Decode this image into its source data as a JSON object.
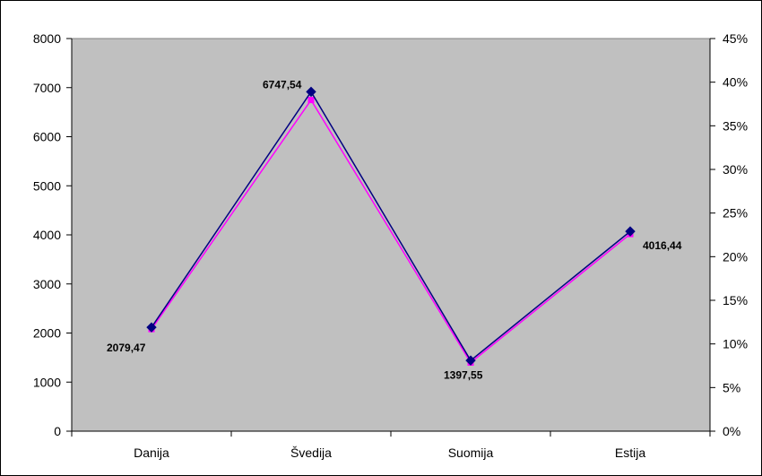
{
  "chart_data": {
    "type": "line",
    "categories": [
      "Danija",
      "Švedija",
      "Suomija",
      "Estija"
    ],
    "series": [
      {
        "values": [
          2079.47,
          6747.54,
          1397.55,
          4016.44
        ],
        "axis": "left",
        "color": "#ff00ff",
        "marker": "square"
      },
      {
        "values": [
          0.119,
          0.389,
          0.081,
          0.229
        ],
        "axis": "right",
        "color": "#000080",
        "marker": "diamond"
      }
    ],
    "data_labels": [
      "2079,47",
      "6747,54",
      "1397,55",
      "4016,44"
    ],
    "y_left": {
      "min": 0,
      "max": 8000,
      "ticks": [
        0,
        1000,
        2000,
        3000,
        4000,
        5000,
        6000,
        7000,
        8000
      ]
    },
    "y_right": {
      "min": 0,
      "max": 0.45,
      "ticks": [
        0,
        0.05,
        0.1,
        0.15,
        0.2,
        0.25,
        0.3,
        0.35,
        0.4,
        0.45
      ],
      "tick_labels": [
        "0%",
        "5%",
        "10%",
        "15%",
        "20%",
        "25%",
        "30%",
        "35%",
        "40%",
        "45%"
      ]
    },
    "plot_background": "#c0c0c0",
    "grid": false,
    "legend": "none",
    "title": "",
    "xlabel": "",
    "ylabel": ""
  }
}
